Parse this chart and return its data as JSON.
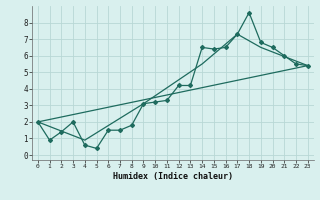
{
  "xlabel": "Humidex (Indice chaleur)",
  "background_color": "#d9f0ee",
  "grid_color": "#b8d8d5",
  "line_color": "#1e6b5e",
  "xlim": [
    -0.5,
    23.5
  ],
  "ylim": [
    -0.3,
    9.0
  ],
  "yticks": [
    0,
    1,
    2,
    3,
    4,
    5,
    6,
    7,
    8
  ],
  "xticks": [
    0,
    1,
    2,
    3,
    4,
    5,
    6,
    7,
    8,
    9,
    10,
    11,
    12,
    13,
    14,
    15,
    16,
    17,
    18,
    19,
    20,
    21,
    22,
    23
  ],
  "line1_x": [
    0,
    1,
    2,
    3,
    4,
    5,
    6,
    7,
    8,
    9,
    10,
    11,
    12,
    13,
    14,
    15,
    16,
    17,
    18,
    19,
    20,
    21,
    22,
    23
  ],
  "line1_y": [
    2.0,
    0.9,
    1.4,
    2.0,
    0.6,
    0.4,
    1.5,
    1.5,
    1.8,
    3.1,
    3.2,
    3.3,
    4.2,
    4.2,
    6.5,
    6.4,
    6.5,
    7.3,
    8.6,
    6.8,
    6.5,
    6.0,
    5.5,
    5.4
  ],
  "line2_x": [
    0,
    23
  ],
  "line2_y": [
    2.0,
    5.4
  ],
  "line3_x": [
    0,
    4,
    9,
    14,
    17,
    19,
    23
  ],
  "line3_y": [
    2.0,
    0.9,
    3.1,
    5.5,
    7.3,
    6.5,
    5.4
  ]
}
